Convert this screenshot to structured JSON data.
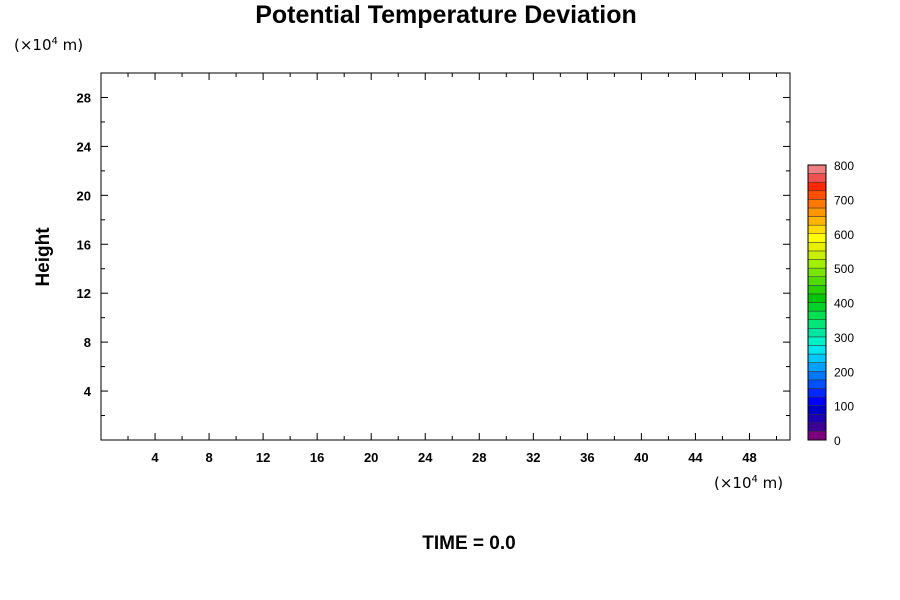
{
  "chart_data": {
    "type": "heatmap",
    "title": "Potential Temperature Deviation",
    "x_unit": {
      "prefix": "(×10",
      "exp": "4",
      "suffix": " m)"
    },
    "y_unit": {
      "prefix": "(×10",
      "exp": "4",
      "suffix": " m)"
    },
    "xlabel": "",
    "ylabel": "Height",
    "xlim": [
      0,
      51
    ],
    "ylim": [
      0,
      30
    ],
    "x_ticks": [
      4,
      8,
      12,
      16,
      20,
      24,
      28,
      32,
      36,
      40,
      44,
      48
    ],
    "y_ticks": [
      4,
      8,
      12,
      16,
      20,
      24,
      28
    ],
    "x_minor_step": 2,
    "y_minor_step": 2,
    "values": [],
    "colorbar": {
      "range": [
        0,
        800
      ],
      "labels": [
        0,
        100,
        200,
        300,
        400,
        500,
        600,
        700,
        800
      ],
      "levels": 32,
      "colors": [
        "#7f007f",
        "#3c0096",
        "#1e00b4",
        "#0000c8",
        "#0000ff",
        "#0028ff",
        "#0050ff",
        "#0078ff",
        "#00a0ff",
        "#00c8ff",
        "#00e6f0",
        "#00f0c8",
        "#00e6a0",
        "#00e678",
        "#00e050",
        "#00d228",
        "#00c800",
        "#28d200",
        "#50dc00",
        "#78e600",
        "#a0f000",
        "#c8f000",
        "#e6f000",
        "#ffff00",
        "#ffdc00",
        "#ffb400",
        "#ff9600",
        "#ff7800",
        "#ff5000",
        "#ff2800",
        "#f05050",
        "#f08080"
      ]
    }
  },
  "footer": {
    "time_label": "TIME = 0.0"
  }
}
